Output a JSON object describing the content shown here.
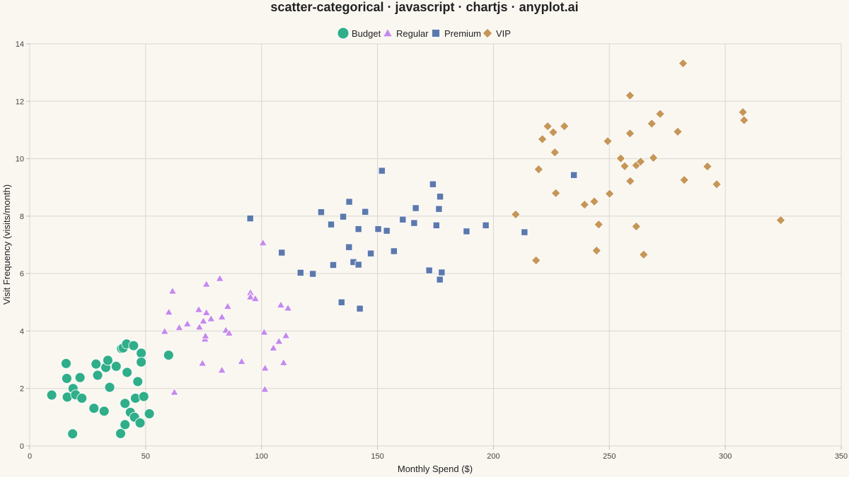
{
  "chart_data": {
    "type": "scatter",
    "title": "scatter-categorical · javascript · chartjs · anyplot.ai",
    "xlabel": "Monthly Spend ($)",
    "ylabel": "Visit Frequency (visits/month)",
    "xlim": [
      0,
      350
    ],
    "ylim": [
      0,
      14
    ],
    "xticks": [
      0,
      50,
      100,
      150,
      200,
      250,
      300,
      350
    ],
    "yticks": [
      0,
      2,
      4,
      6,
      8,
      10,
      12,
      14
    ],
    "grid": true,
    "legend_position": "top-center",
    "series": [
      {
        "name": "Budget",
        "marker": "circle",
        "color": "#2FAE89",
        "points": [
          [
            9.5,
            1.77
          ],
          [
            15.7,
            2.87
          ],
          [
            16.0,
            2.35
          ],
          [
            16.2,
            1.7
          ],
          [
            18.5,
            0.42
          ],
          [
            18.7,
            2.0
          ],
          [
            19.8,
            1.78
          ],
          [
            21.7,
            2.38
          ],
          [
            22.5,
            1.66
          ],
          [
            27.7,
            1.31
          ],
          [
            28.6,
            2.85
          ],
          [
            29.3,
            2.46
          ],
          [
            32.1,
            1.21
          ],
          [
            32.8,
            2.73
          ],
          [
            33.7,
            2.98
          ],
          [
            34.5,
            2.04
          ],
          [
            37.3,
            2.77
          ],
          [
            39.2,
            0.43
          ],
          [
            39.6,
            3.39
          ],
          [
            40.3,
            3.41
          ],
          [
            41.1,
            0.74
          ],
          [
            41.1,
            1.48
          ],
          [
            41.8,
            3.55
          ],
          [
            42.0,
            2.56
          ],
          [
            43.4,
            1.17
          ],
          [
            44.8,
            3.49
          ],
          [
            45.2,
            1.0
          ],
          [
            45.6,
            1.66
          ],
          [
            46.6,
            2.24
          ],
          [
            47.6,
            0.8
          ],
          [
            48.1,
            3.23
          ],
          [
            48.1,
            2.92
          ],
          [
            49.2,
            1.72
          ],
          [
            51.6,
            1.12
          ],
          [
            59.9,
            3.16
          ]
        ]
      },
      {
        "name": "Regular",
        "marker": "triangle",
        "color": "#C589EC",
        "points": [
          [
            58.2,
            3.99
          ],
          [
            60.0,
            4.66
          ],
          [
            61.6,
            5.39
          ],
          [
            62.4,
            1.87
          ],
          [
            64.5,
            4.12
          ],
          [
            68.0,
            4.25
          ],
          [
            72.9,
            4.75
          ],
          [
            73.2,
            4.14
          ],
          [
            74.5,
            2.88
          ],
          [
            74.9,
            4.35
          ],
          [
            75.6,
            3.72
          ],
          [
            75.8,
            3.83
          ],
          [
            76.2,
            5.63
          ],
          [
            76.2,
            4.64
          ],
          [
            78.2,
            4.43
          ],
          [
            82.0,
            5.83
          ],
          [
            82.9,
            2.64
          ],
          [
            82.9,
            4.49
          ],
          [
            84.6,
            4.03
          ],
          [
            85.4,
            4.86
          ],
          [
            86.0,
            3.93
          ],
          [
            91.4,
            2.94
          ],
          [
            95.2,
            5.34
          ],
          [
            95.2,
            5.19
          ],
          [
            97.3,
            5.13
          ],
          [
            100.6,
            7.07
          ],
          [
            101.1,
            3.96
          ],
          [
            101.4,
            1.97
          ],
          [
            101.5,
            2.71
          ],
          [
            105.1,
            3.41
          ],
          [
            107.5,
            3.64
          ],
          [
            108.3,
            4.91
          ],
          [
            109.5,
            2.9
          ],
          [
            110.5,
            3.84
          ],
          [
            111.4,
            4.8
          ]
        ]
      },
      {
        "name": "Premium",
        "marker": "square",
        "color": "#5B79AD",
        "points": [
          [
            95.1,
            7.92
          ],
          [
            108.7,
            6.73
          ],
          [
            116.8,
            6.03
          ],
          [
            122.1,
            5.99
          ],
          [
            125.7,
            8.14
          ],
          [
            130.0,
            7.71
          ],
          [
            130.9,
            6.3
          ],
          [
            134.5,
            5.0
          ],
          [
            135.2,
            7.98
          ],
          [
            137.7,
            6.92
          ],
          [
            137.8,
            8.5
          ],
          [
            139.6,
            6.4
          ],
          [
            141.8,
            7.55
          ],
          [
            141.8,
            6.31
          ],
          [
            142.4,
            4.78
          ],
          [
            144.7,
            8.15
          ],
          [
            147.1,
            6.7
          ],
          [
            150.3,
            7.55
          ],
          [
            151.9,
            9.58
          ],
          [
            154.0,
            7.49
          ],
          [
            157.1,
            6.78
          ],
          [
            160.9,
            7.88
          ],
          [
            165.8,
            7.76
          ],
          [
            166.5,
            8.28
          ],
          [
            172.3,
            6.11
          ],
          [
            173.9,
            9.11
          ],
          [
            175.4,
            7.68
          ],
          [
            176.5,
            8.25
          ],
          [
            177.0,
            8.68
          ],
          [
            176.9,
            5.79
          ],
          [
            177.7,
            6.04
          ],
          [
            188.4,
            7.47
          ],
          [
            196.7,
            7.68
          ],
          [
            213.4,
            7.44
          ],
          [
            234.7,
            9.43
          ]
        ]
      },
      {
        "name": "VIP",
        "marker": "diamond",
        "color": "#C69657",
        "points": [
          [
            209.6,
            8.06
          ],
          [
            218.4,
            6.46
          ],
          [
            219.5,
            9.63
          ],
          [
            221.1,
            10.68
          ],
          [
            223.4,
            11.13
          ],
          [
            225.8,
            10.92
          ],
          [
            226.5,
            10.22
          ],
          [
            226.9,
            8.8
          ],
          [
            230.6,
            11.13
          ],
          [
            239.3,
            8.4
          ],
          [
            243.5,
            8.51
          ],
          [
            244.5,
            6.8
          ],
          [
            245.4,
            7.71
          ],
          [
            249.3,
            10.61
          ],
          [
            250.1,
            8.78
          ],
          [
            254.9,
            10.01
          ],
          [
            256.6,
            9.74
          ],
          [
            258.9,
            12.2
          ],
          [
            258.9,
            10.88
          ],
          [
            259.0,
            9.22
          ],
          [
            261.6,
            7.64
          ],
          [
            261.6,
            9.77
          ],
          [
            263.5,
            9.9
          ],
          [
            264.8,
            6.66
          ],
          [
            268.3,
            11.22
          ],
          [
            269.0,
            10.03
          ],
          [
            271.9,
            11.56
          ],
          [
            279.5,
            10.94
          ],
          [
            281.8,
            13.32
          ],
          [
            282.3,
            9.26
          ],
          [
            292.3,
            9.73
          ],
          [
            296.3,
            9.11
          ],
          [
            307.6,
            11.62
          ],
          [
            308.1,
            11.34
          ],
          [
            323.9,
            7.86
          ]
        ]
      }
    ]
  }
}
